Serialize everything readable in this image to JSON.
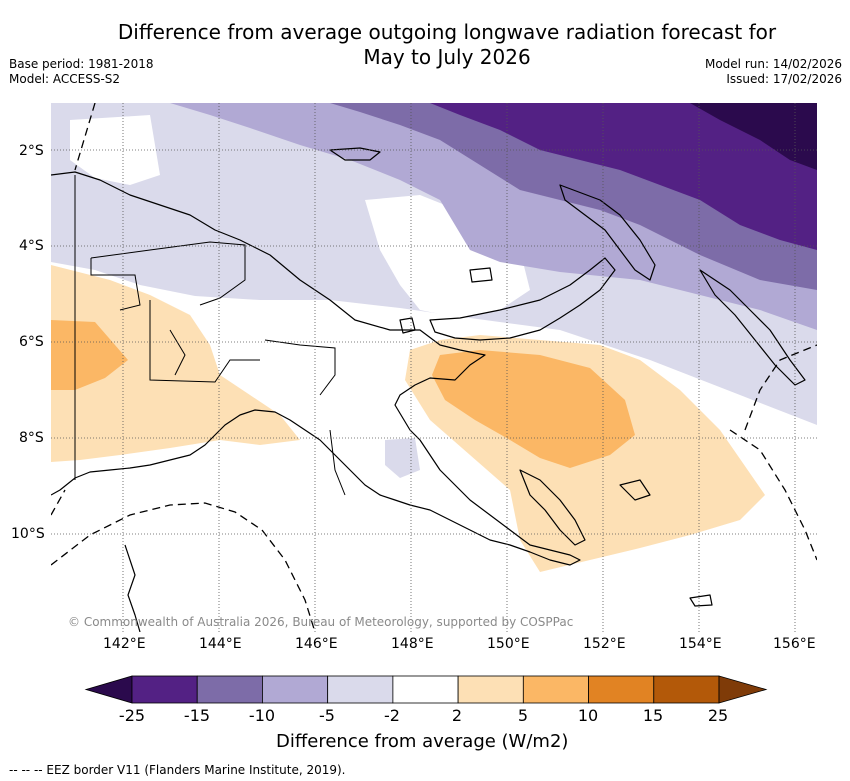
{
  "title": {
    "line1": "Difference from average outgoing longwave radiation forecast for",
    "line2": "May to July 2026"
  },
  "meta_left": {
    "base_period": "Base period: 1981-2018",
    "model": "Model: ACCESS-S2"
  },
  "meta_right": {
    "model_run": "Model run: 14/02/2026",
    "issued": "Issued: 17/02/2026"
  },
  "map": {
    "lat_labels": [
      "2°S",
      "4°S",
      "6°S",
      "8°S",
      "10°S"
    ],
    "lon_labels": [
      "142°E",
      "144°E",
      "146°E",
      "148°E",
      "150°E",
      "152°E",
      "154°E",
      "156°E"
    ],
    "copyright": "© Commonwealth of Australia 2026, Bureau of Meteorology, supported by COSPPac"
  },
  "colorbar": {
    "ticks": [
      "-25",
      "-15",
      "-10",
      "-5",
      "-2",
      "2",
      "5",
      "10",
      "15",
      "25"
    ],
    "colors": [
      "#2b0a4d",
      "#532184",
      "#7d6ca8",
      "#b1a9d4",
      "#dadaeb",
      "#ffffff",
      "#fde0b5",
      "#fbb765",
      "#e18323",
      "#b35909",
      "#7f3b08"
    ],
    "label": "Difference from average (W/m2)"
  },
  "footer": {
    "eez_legend": "--  --  -- EEZ border V11 (Flanders Marine Institute, 2019)."
  },
  "anomaly_colors": {
    "purple_1": "#dadaeb",
    "purple_2": "#b1a9d4",
    "purple_3": "#7d6ca8",
    "purple_4": "#532184",
    "purple_5": "#2b0a4d",
    "orange_1": "#fde0b5",
    "orange_2": "#fbb765"
  }
}
